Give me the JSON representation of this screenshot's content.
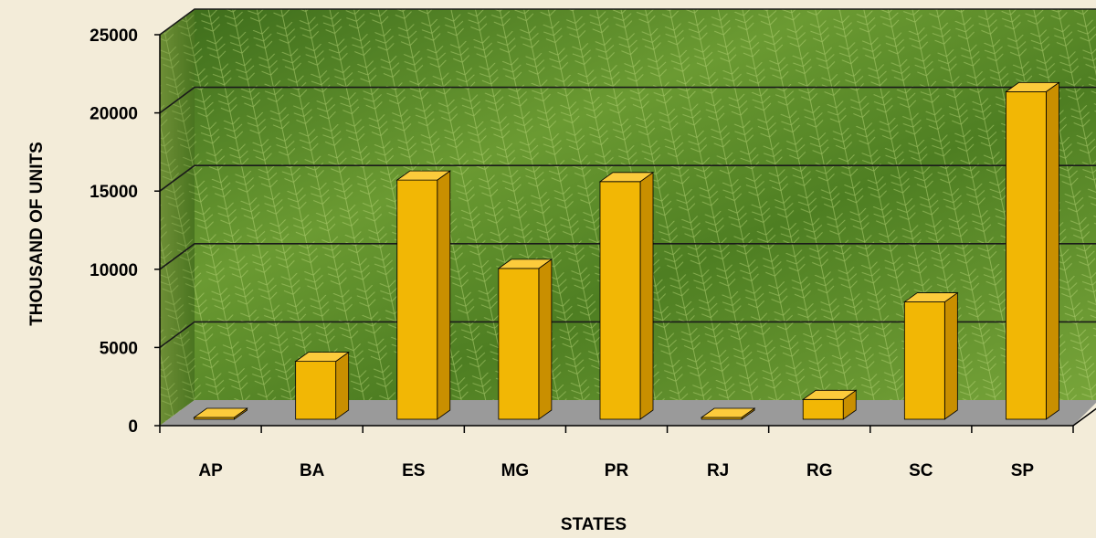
{
  "chart_data": {
    "type": "bar",
    "title": "",
    "xlabel": "STATES",
    "ylabel": "THOUSAND OF UNITS",
    "categories": [
      "AP",
      "BA",
      "ES",
      "MG",
      "PR",
      "RJ",
      "RG",
      "SC",
      "SP"
    ],
    "values": [
      100,
      3800,
      15700,
      9900,
      15600,
      50,
      1300,
      7700,
      21500
    ],
    "ylim": [
      0,
      25000
    ],
    "yticks": [
      "0",
      "5000",
      "10000",
      "15000",
      "20000",
      "25000"
    ],
    "grid": true,
    "legend": "none",
    "colors": {
      "bar_front": "#f2b705",
      "bar_side": "#c98f00",
      "bar_top": "#fccb3c",
      "floor": "#9a9a9a",
      "background": "#f3ecd9",
      "wall": "#4f7f25",
      "gridline": "#1a1a1a"
    }
  }
}
